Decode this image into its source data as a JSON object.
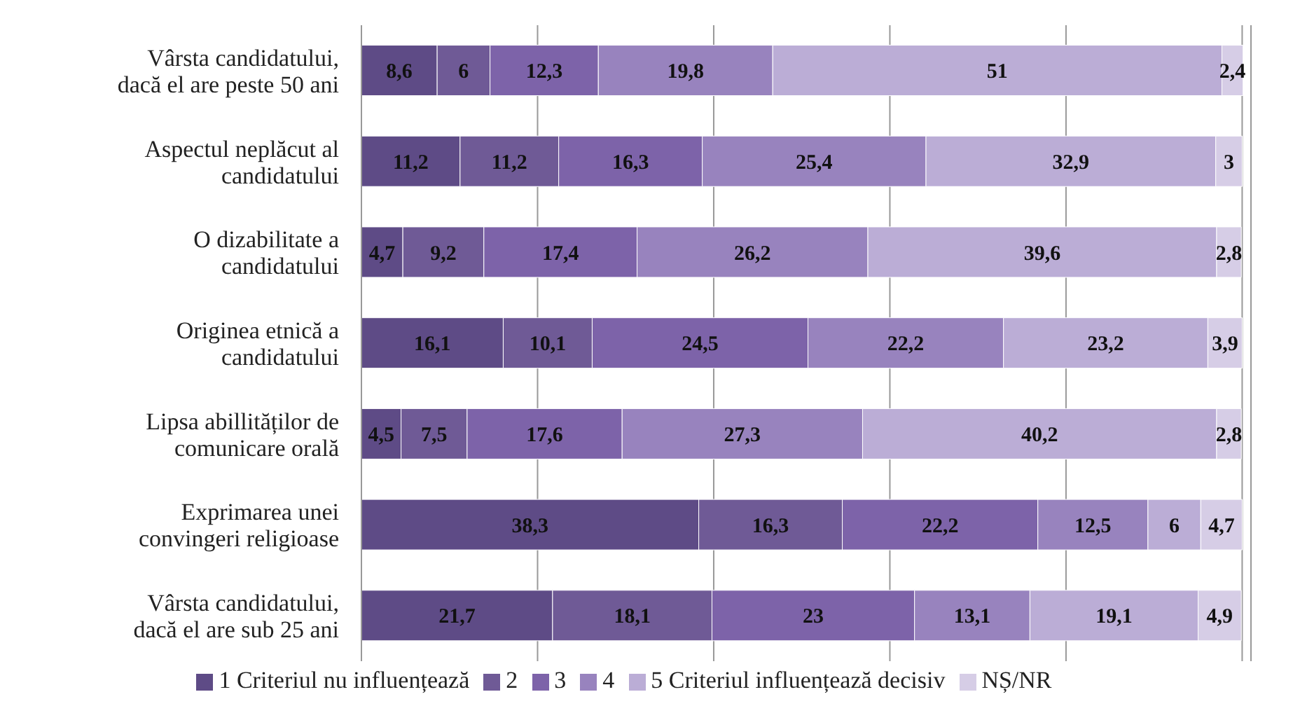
{
  "chart_data": {
    "type": "bar",
    "orientation": "horizontal",
    "stacked": true,
    "grid": "x",
    "legend": "bottom",
    "xlim": [
      0,
      101
    ],
    "xticks": [
      {
        "value": 0,
        "label": null
      },
      {
        "value": 20,
        "label": null
      },
      {
        "value": 40,
        "label": null
      },
      {
        "value": 60,
        "label": null
      },
      {
        "value": 80,
        "label": null
      },
      {
        "value": 100,
        "label": null
      }
    ],
    "categories": [
      "Vârsta candidatului, dacă el are peste 50 ani",
      "Aspectul neplăcut al candidatului",
      "O dizabilitate a candidatului",
      "Originea etnică a candidatului",
      "Lipsa abillităților de comunicare orală",
      "Exprimarea unei convingeri religioase",
      "Vârsta candidatului, dacă el are sub 25 ani"
    ],
    "series": [
      {
        "name": "1 Criteriul nu influențează",
        "color": "#5e4b86",
        "values": [
          8.6,
          11.2,
          4.7,
          16.1,
          4.5,
          38.3,
          21.7
        ],
        "value_labels": [
          "8,6",
          "11,2",
          "4,7",
          "16,1",
          "4,5",
          "38,3",
          "21,7"
        ]
      },
      {
        "name": "2",
        "color": "#6f5a96",
        "values": [
          6,
          11.2,
          9.2,
          10.1,
          7.5,
          16.3,
          18.1
        ],
        "value_labels": [
          "6",
          "11,2",
          "9,2",
          "10,1",
          "7,5",
          "16,3",
          "18,1"
        ]
      },
      {
        "name": "3",
        "color": "#7d63a9",
        "values": [
          12.3,
          16.3,
          17.4,
          24.5,
          17.6,
          22.2,
          23
        ],
        "value_labels": [
          "12,3",
          "16,3",
          "17,4",
          "24,5",
          "17,6",
          "22,2",
          "23"
        ]
      },
      {
        "name": "4",
        "color": "#9883be",
        "values": [
          19.8,
          25.4,
          26.2,
          22.2,
          27.3,
          12.5,
          13.1
        ],
        "value_labels": [
          "19,8",
          "25,4",
          "26,2",
          "22,2",
          "27,3",
          "12,5",
          "13,1"
        ]
      },
      {
        "name": "5 Criteriul influențează decisiv",
        "color": "#bbadd6",
        "values": [
          51,
          32.9,
          39.6,
          23.2,
          40.2,
          6,
          19.1
        ],
        "value_labels": [
          "51",
          "32,9",
          "39,6",
          "23,2",
          "40,2",
          "6",
          "19,1"
        ]
      },
      {
        "name": "NȘ/NR",
        "color": "#d6cde6",
        "values": [
          2.4,
          3,
          2.8,
          3.9,
          2.8,
          4.7,
          4.9
        ],
        "value_labels": [
          "2,4",
          "3",
          "2,8",
          "3,9",
          "2,8",
          "4,7",
          "4,9"
        ]
      }
    ]
  }
}
